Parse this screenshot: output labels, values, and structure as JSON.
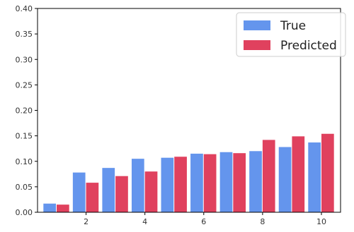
{
  "chart_data": {
    "type": "bar",
    "x": [
      1,
      2,
      3,
      4,
      5,
      6,
      7,
      8,
      9,
      10
    ],
    "xticks": [
      2,
      4,
      6,
      8,
      10
    ],
    "yticks": [
      0.0,
      0.05,
      0.1,
      0.15,
      0.2,
      0.25,
      0.3,
      0.35,
      0.4
    ],
    "xlim": [
      0.35,
      10.65
    ],
    "ylim": [
      0,
      0.4
    ],
    "series": [
      {
        "name": "True",
        "color": "#6495ED",
        "values": [
          0.017,
          0.078,
          0.087,
          0.105,
          0.107,
          0.115,
          0.118,
          0.12,
          0.128,
          0.137
        ]
      },
      {
        "name": "Predicted",
        "color": "#E0415E",
        "values": [
          0.015,
          0.058,
          0.071,
          0.08,
          0.109,
          0.114,
          0.116,
          0.142,
          0.149,
          0.154
        ]
      }
    ],
    "grid": false,
    "legend_position": "top-right",
    "title": "",
    "xlabel": "",
    "ylabel": ""
  }
}
